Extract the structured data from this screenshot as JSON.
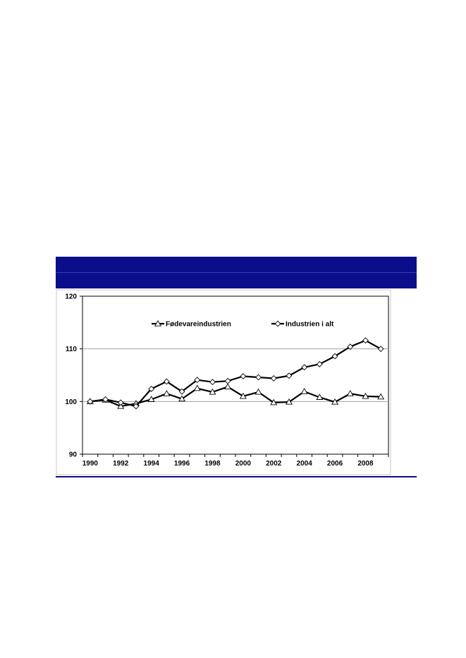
{
  "chart_data": {
    "type": "line",
    "x": [
      1990,
      1991,
      1992,
      1993,
      1994,
      1995,
      1996,
      1997,
      1998,
      1999,
      2000,
      2001,
      2002,
      2003,
      2004,
      2005,
      2006,
      2007,
      2008,
      2009
    ],
    "series": [
      {
        "name": "Fødevareindustrien",
        "marker": "triangle",
        "values": [
          100.0,
          100.3,
          99.1,
          99.6,
          100.4,
          101.5,
          100.5,
          102.5,
          101.8,
          102.8,
          101.0,
          101.8,
          99.8,
          99.9,
          101.9,
          100.8,
          99.9,
          101.5,
          101.0,
          100.9
        ]
      },
      {
        "name": "Industrien i alt",
        "marker": "diamond",
        "values": [
          100.0,
          100.4,
          99.8,
          99.1,
          102.4,
          103.8,
          101.9,
          104.1,
          103.7,
          103.9,
          104.8,
          104.6,
          104.4,
          104.9,
          106.5,
          107.1,
          108.6,
          110.4,
          111.6,
          110.0
        ]
      }
    ],
    "x_tick_labels": [
      "1990",
      "1992",
      "1994",
      "1996",
      "1998",
      "2000",
      "2002",
      "2004",
      "2006",
      "2008"
    ],
    "y_tick_labels": [
      "90",
      "100",
      "110",
      "120"
    ],
    "ylim": [
      90,
      120
    ],
    "xlim": [
      1990,
      2009
    ],
    "grid": "horizontal",
    "legend": "top",
    "colors": {
      "line": "#000000",
      "marker_fill": "#ffffff",
      "grid": "#a0a0a0",
      "header": "#0b0e8a"
    }
  }
}
